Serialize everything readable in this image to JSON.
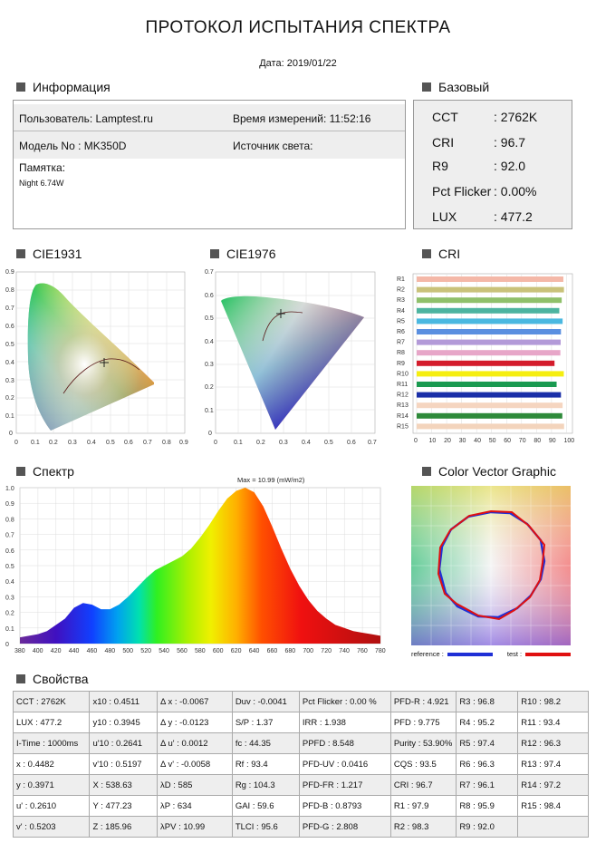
{
  "header": {
    "title": "ПРОТОКОЛ ИСПЫТАНИЯ СПЕКТРА",
    "date": "Дата: 2019/01/22"
  },
  "sections": {
    "info": "Информация",
    "base": "Базовый",
    "cie1931": "CIE1931",
    "cie1976": "CIE1976",
    "cri": "CRI",
    "spectrum": "Спектр",
    "cvg": "Color Vector Graphic",
    "props": "Свойства"
  },
  "info": {
    "user": "Пользователь: Lamptest.ru",
    "time": "Время измерений: 11:52:16",
    "model": "Модель No : MK350D",
    "source": "Источник света:",
    "memo_label": "Памятка:",
    "memo": "Night 6.74W"
  },
  "base": [
    {
      "k": "CCT",
      "v": ": 2762K"
    },
    {
      "k": "CRI",
      "v": ": 96.7"
    },
    {
      "k": "R9",
      "v": ": 92.0"
    },
    {
      "k": "Pct Flicker",
      "v": ": 0.00%"
    },
    {
      "k": "LUX",
      "v": ": 477.2"
    }
  ],
  "cie1931_axes": {
    "x": [
      "0",
      "0.1",
      "0.2",
      "0.3",
      "0.4",
      "0.5",
      "0.6",
      "0.7",
      "0.8",
      "0.9"
    ],
    "y": [
      "0.9",
      "0.8",
      "0.7",
      "0.6",
      "0.5",
      "0.4",
      "0.3",
      "0.2",
      "0.1",
      "0"
    ]
  },
  "cie1976_axes": {
    "x": [
      "0",
      "0.1",
      "0.2",
      "0.3",
      "0.4",
      "0.5",
      "0.6",
      "0.7"
    ],
    "y": [
      "0.7",
      "0.6",
      "0.5",
      "0.4",
      "0.3",
      "0.2",
      "0.1",
      "0"
    ]
  },
  "cri_axis": [
    "0",
    "10",
    "20",
    "30",
    "40",
    "50",
    "60",
    "70",
    "80",
    "90",
    "100"
  ],
  "spectrum_max_label": "Max = 10.99 (mW/m2)",
  "cvg_legend": {
    "ref": "reference :",
    "test": "test :",
    "ref_color": "#1f2fd6",
    "test_color": "#e01010"
  },
  "chart_data": [
    {
      "type": "bar",
      "title": "CRI",
      "categories": [
        "R1",
        "R2",
        "R3",
        "R4",
        "R5",
        "R6",
        "R7",
        "R8",
        "R9",
        "R10",
        "R11",
        "R12",
        "R13",
        "R14",
        "R15"
      ],
      "values": [
        97.9,
        98.3,
        96.8,
        95.2,
        97.4,
        96.3,
        96.1,
        95.9,
        92.0,
        98.2,
        93.4,
        96.3,
        97.4,
        97.2,
        98.4
      ],
      "colors": [
        "#f4b8a8",
        "#c9c27a",
        "#8fc06a",
        "#4cb4a0",
        "#4ab8e0",
        "#5a8fe0",
        "#b39ad8",
        "#e7a6c8",
        "#d41c2c",
        "#f5ee10",
        "#1a9a50",
        "#1a2fa8",
        "#f5d5c0",
        "#2e8a3a",
        "#f3d4bc"
      ],
      "xlim": [
        0,
        100
      ]
    },
    {
      "type": "area",
      "title": "Спектр",
      "x": [
        380,
        390,
        400,
        410,
        420,
        430,
        440,
        450,
        460,
        470,
        480,
        490,
        500,
        510,
        520,
        530,
        540,
        550,
        560,
        570,
        580,
        590,
        600,
        610,
        620,
        630,
        640,
        650,
        660,
        670,
        680,
        690,
        700,
        710,
        720,
        730,
        740,
        750,
        760,
        770,
        780
      ],
      "y": [
        0.04,
        0.05,
        0.06,
        0.08,
        0.12,
        0.16,
        0.23,
        0.26,
        0.25,
        0.22,
        0.22,
        0.25,
        0.3,
        0.36,
        0.42,
        0.47,
        0.5,
        0.53,
        0.56,
        0.61,
        0.68,
        0.76,
        0.85,
        0.93,
        0.98,
        1.0,
        0.97,
        0.88,
        0.75,
        0.61,
        0.48,
        0.37,
        0.28,
        0.21,
        0.16,
        0.12,
        0.1,
        0.08,
        0.07,
        0.06,
        0.05
      ],
      "xticks": [
        "380",
        "400",
        "420",
        "440",
        "460",
        "480",
        "500",
        "520",
        "540",
        "560",
        "580",
        "600",
        "620",
        "640",
        "660",
        "680",
        "700",
        "720",
        "740",
        "760",
        "780"
      ],
      "yticks": [
        "1.0",
        "0.9",
        "0.8",
        "0.7",
        "0.6",
        "0.5",
        "0.4",
        "0.3",
        "0.2",
        "0.1",
        "0"
      ],
      "xlim": [
        380,
        780
      ],
      "ylim": [
        0,
        1.0
      ]
    }
  ],
  "props_rows": [
    [
      "CCT : 2762K",
      "x10 : 0.4511",
      "Δ x : -0.0067",
      "Duv : -0.0041",
      "Pct Flicker : 0.00 %",
      "PFD-R : 4.921",
      "R3 : 96.8",
      "R10 : 98.2"
    ],
    [
      "LUX : 477.2",
      "y10 : 0.3945",
      "Δ y : -0.0123",
      "S/P : 1.37",
      "IRR : 1.938",
      "PFD : 9.775",
      "R4 : 95.2",
      "R11 : 93.4"
    ],
    [
      "I-Time : 1000ms",
      "u'10 : 0.2641",
      "Δ u' : 0.0012",
      "fc : 44.35",
      "PPFD : 8.548",
      "Purity : 53.90%",
      "R5 : 97.4",
      "R12 : 96.3"
    ],
    [
      "x : 0.4482",
      "v'10 : 0.5197",
      "Δ v' : -0.0058",
      "Rf : 93.4",
      "PFD-UV : 0.0416",
      "CQS : 93.5",
      "R6 : 96.3",
      "R13 : 97.4"
    ],
    [
      "y : 0.3971",
      "X : 538.63",
      "λD : 585",
      "Rg : 104.3",
      "PFD-FR : 1.217",
      "CRI : 96.7",
      "R7 : 96.1",
      "R14 : 97.2"
    ],
    [
      "u' : 0.2610",
      "Y : 477.23",
      "λP : 634",
      "GAI : 59.6",
      "PFD-B : 0.8793",
      "R1 : 97.9",
      "R8 : 95.9",
      "R15 : 98.4"
    ],
    [
      "v' : 0.5203",
      "Z : 185.96",
      "λPV : 10.99",
      "TLCI : 95.6",
      "PFD-G : 2.808",
      "R2 : 98.3",
      "R9 : 92.0",
      ""
    ]
  ]
}
